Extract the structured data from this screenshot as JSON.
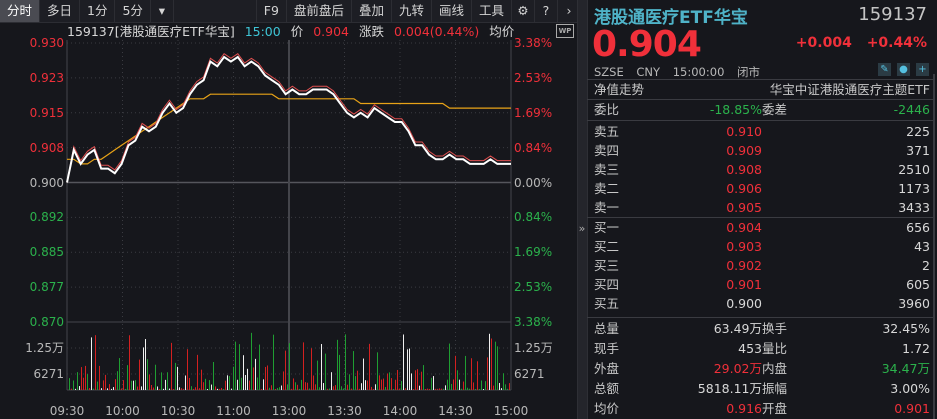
{
  "toolbar": {
    "tabs": [
      "分时",
      "多日",
      "1分",
      "5分"
    ],
    "active_tab": "分时",
    "dropdown_icon": "filter-dropdown-icon",
    "right_buttons": [
      "F9",
      "盘前盘后",
      "叠加",
      "九转",
      "画线",
      "工具"
    ],
    "icons": [
      "gear-icon",
      "help-icon",
      "chevron-right-icon"
    ]
  },
  "chart_header": {
    "code_name": "159137[港股通医疗ETF华宝]",
    "time": "15:00",
    "price_label": "价",
    "price": "0.904",
    "change_label": "涨跌",
    "change": "0.004(0.44%)",
    "avg_label": "均价",
    "wp_badge": "WP"
  },
  "chart_data": {
    "type": "line",
    "title": "159137 港股通医疗ETF华宝 分时",
    "x_ticks": [
      "09:30",
      "10:00",
      "10:30",
      "11:00",
      "13:00",
      "13:30",
      "14:00",
      "14:30",
      "15:00"
    ],
    "y_left_ticks": [
      "0.930",
      "0.923",
      "0.915",
      "0.908",
      "0.900",
      "0.892",
      "0.885",
      "0.877",
      "0.870"
    ],
    "y_right_ticks": [
      "3.38%",
      "2.53%",
      "1.69%",
      "0.84%",
      "0.00%",
      "0.84%",
      "1.69%",
      "2.53%",
      "3.38%"
    ],
    "ylim": [
      0.87,
      0.93
    ],
    "prev_close": 0.9,
    "volume_ticks": [
      "1.25万",
      "6271"
    ],
    "series": [
      {
        "name": "价格",
        "color": "#ffffff",
        "values": [
          0.9,
          0.907,
          0.904,
          0.906,
          0.907,
          0.903,
          0.903,
          0.902,
          0.904,
          0.908,
          0.909,
          0.912,
          0.911,
          0.912,
          0.915,
          0.917,
          0.915,
          0.916,
          0.919,
          0.921,
          0.922,
          0.926,
          0.925,
          0.927,
          0.926,
          0.927,
          0.925,
          0.926,
          0.925,
          0.923,
          0.922,
          0.921,
          0.919,
          0.92,
          0.919,
          0.919,
          0.92,
          0.92,
          0.92,
          0.919,
          0.917,
          0.915,
          0.914,
          0.915,
          0.914,
          0.916,
          0.915,
          0.914,
          0.913,
          0.913,
          0.911,
          0.908,
          0.908,
          0.906,
          0.905,
          0.905,
          0.906,
          0.905,
          0.905,
          0.904,
          0.904,
          0.904,
          0.905,
          0.904,
          0.904,
          0.904
        ]
      },
      {
        "name": "均价",
        "color": "#e8a317",
        "values": [
          0.905,
          0.905,
          0.904,
          0.904,
          0.905,
          0.905,
          0.906,
          0.907,
          0.908,
          0.909,
          0.91,
          0.911,
          0.912,
          0.913,
          0.914,
          0.915,
          0.916,
          0.917,
          0.918,
          0.918,
          0.918,
          0.919,
          0.919,
          0.919,
          0.919,
          0.919,
          0.919,
          0.919,
          0.919,
          0.919,
          0.919,
          0.918,
          0.918,
          0.918,
          0.918,
          0.918,
          0.918,
          0.918,
          0.918,
          0.918,
          0.918,
          0.918,
          0.918,
          0.917,
          0.917,
          0.917,
          0.917,
          0.917,
          0.917,
          0.917,
          0.917,
          0.917,
          0.917,
          0.917,
          0.917,
          0.917,
          0.916,
          0.916,
          0.916,
          0.916,
          0.916,
          0.916,
          0.916,
          0.916,
          0.916,
          0.916
        ]
      }
    ],
    "grid": true
  },
  "panel": {
    "name": "港股通医疗ETF华宝",
    "code": "159137",
    "price": "0.904",
    "change": "+0.004",
    "change_pct": "+0.44%",
    "exchange": "SZSE",
    "currency": "CNY",
    "time": "15:00:00",
    "status": "闭市",
    "icons": [
      "pencil-icon",
      "bell-icon",
      "plus-icon"
    ],
    "nav_label": "净值走势",
    "fund_name": "华宝中证港股通医疗主题ETF",
    "weibi_label": "委比",
    "weibi": "-18.85%",
    "weicha_label": "委差",
    "weicha": "-2446",
    "asks": [
      {
        "label": "卖五",
        "price": "0.910",
        "vol": "225"
      },
      {
        "label": "卖四",
        "price": "0.909",
        "vol": "371"
      },
      {
        "label": "卖三",
        "price": "0.908",
        "vol": "2510"
      },
      {
        "label": "卖二",
        "price": "0.906",
        "vol": "1173"
      },
      {
        "label": "卖一",
        "price": "0.905",
        "vol": "3433"
      }
    ],
    "bids": [
      {
        "label": "买一",
        "price": "0.904",
        "vol": "656"
      },
      {
        "label": "买二",
        "price": "0.903",
        "vol": "43"
      },
      {
        "label": "买三",
        "price": "0.902",
        "vol": "2"
      },
      {
        "label": "买四",
        "price": "0.901",
        "vol": "605"
      },
      {
        "label": "买五",
        "price": "0.900",
        "vol": "3960"
      }
    ],
    "stats": [
      {
        "l1": "总量",
        "v1": "63.49万",
        "l2": "换手",
        "v2": "32.45%"
      },
      {
        "l1": "现手",
        "v1": "453",
        "l2": "量比",
        "v2": "1.72"
      },
      {
        "l1": "外盘",
        "v1": "29.02万",
        "l2": "内盘",
        "v2": "34.47万"
      },
      {
        "l1": "总额",
        "v1": "5818.11万",
        "l2": "振幅",
        "v2": "3.00%"
      },
      {
        "l1": "均价",
        "v1": "0.916",
        "l2": "开盘",
        "v2": "0.901"
      }
    ],
    "colors": {
      "up": "#f0303a",
      "down": "#2bb24c",
      "flat": "#d8d8d8",
      "accent": "#4fb3c8"
    }
  }
}
